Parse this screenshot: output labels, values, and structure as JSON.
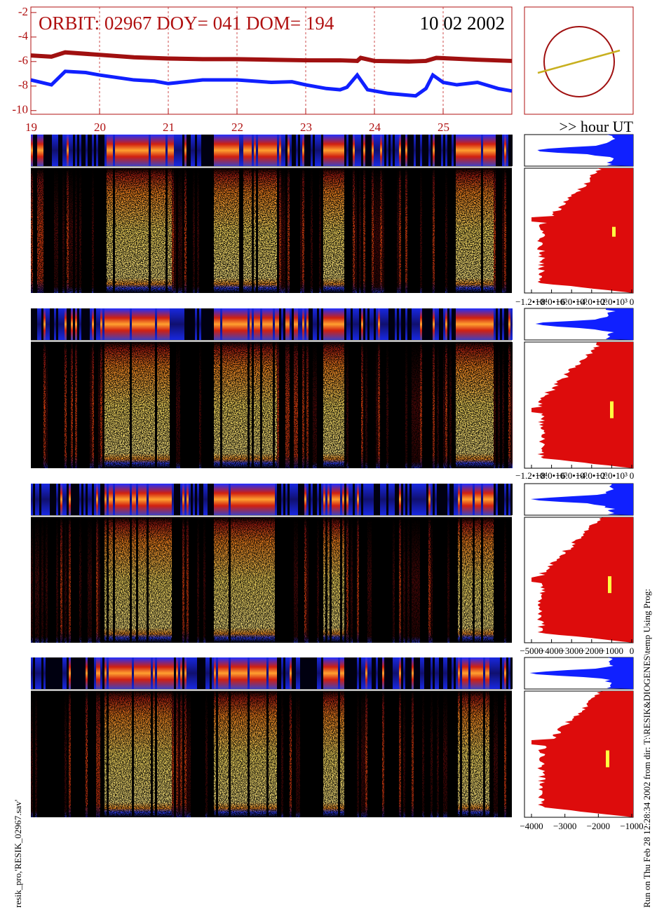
{
  "chart_data": {
    "type": "line",
    "title": "ORBIT: 02967 DOY=  041 DOM=  194",
    "subtitle": "10 02 2002",
    "xlabel": ">> hour UT",
    "xlim": [
      19,
      26
    ],
    "ylim": [
      -10.3,
      -1.55
    ],
    "xticks": [
      19,
      20,
      21,
      22,
      23,
      24,
      25
    ],
    "yticks": [
      -10,
      -8,
      -6,
      -4,
      -2
    ],
    "grid": "x",
    "series": [
      {
        "color": "#a01010",
        "x": [
          19,
          19.3,
          19.5,
          20,
          20.5,
          21,
          21.5,
          22,
          22.5,
          23,
          23.5,
          23.75,
          23.8,
          24,
          24.5,
          24.75,
          24.9,
          25.5,
          26
        ],
        "values": [
          -5.5,
          -5.6,
          -5.25,
          -5.45,
          -5.65,
          -5.75,
          -5.8,
          -5.8,
          -5.85,
          -5.9,
          -5.9,
          -5.95,
          -5.7,
          -5.95,
          -6.0,
          -5.95,
          -5.7,
          -5.85,
          -5.95
        ]
      },
      {
        "color": "#1020ff",
        "x": [
          19,
          19.3,
          19.5,
          19.8,
          20,
          20.5,
          20.8,
          21,
          21.5,
          22,
          22.5,
          22.8,
          23,
          23.3,
          23.5,
          23.6,
          23.75,
          23.9,
          24.2,
          24.6,
          24.75,
          24.85,
          25,
          25.2,
          25.5,
          25.8,
          26
        ],
        "values": [
          -7.5,
          -7.9,
          -6.8,
          -6.9,
          -7.1,
          -7.5,
          -7.6,
          -7.8,
          -7.5,
          -7.5,
          -7.7,
          -7.65,
          -7.9,
          -8.2,
          -8.3,
          -8.1,
          -7.1,
          -8.3,
          -8.6,
          -8.8,
          -8.2,
          -7.1,
          -7.7,
          -7.9,
          -7.7,
          -8.2,
          -8.4
        ]
      }
    ]
  },
  "side_axes": [
    [
      "−1.2•10⁴",
      "−8.0•10³",
      "−6.0•10³",
      "−4.0•10³",
      "−2.0•10³",
      "0"
    ],
    [
      "−1.2•10⁴",
      "−8.0•10³",
      "−6.0•10³",
      "−4.0•10³",
      "−2.0•10³",
      "0"
    ],
    [
      "−5000",
      "−4000",
      "−3000",
      "−2000",
      "−1000",
      "0"
    ],
    [
      "−4000",
      "−3000",
      "−2000",
      "−1000"
    ]
  ],
  "footer": {
    "left": "resik_pro,'RESIK_02967.sav'",
    "right": "Run on Thu Feb 28 12:28:34 2002  from dir: T:\\RESIK&DIOGENES\\temp Using Prog:"
  }
}
